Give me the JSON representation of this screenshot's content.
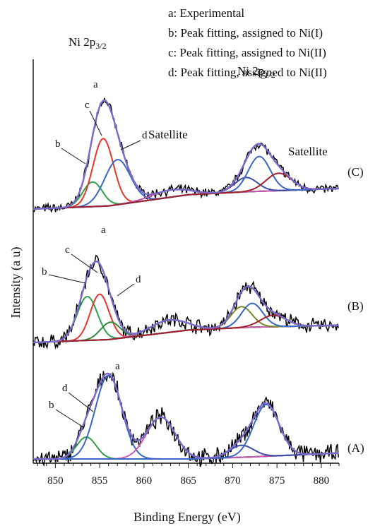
{
  "chart_data": {
    "type": "line",
    "title": "",
    "xlabel": "Binding Energy (eV)",
    "ylabel": "Intensity (a u)",
    "xlim": [
      847.5,
      882
    ],
    "x_ticks": [
      850,
      855,
      860,
      865,
      870,
      875,
      880
    ],
    "x_minor_step": 1,
    "y_ticks_shown": false,
    "grid": false,
    "legend_position": "top-right",
    "legend": [
      "a: Experimental",
      "b: Peak fitting, assigned to Ni(I)",
      "c: Peak fitting, assigned to Ni(II)",
      "d: Peak fitting, assigned to Ni(II)"
    ],
    "colors": {
      "experimental": "#000000",
      "envelope": "#7b68c8",
      "background": "#000000",
      "b": "#2e9e4a",
      "c": "#e8352c",
      "d": "#3a66c4",
      "sat_pink": "#c75bb0",
      "sat_blue": "#3a4aa8",
      "sat_red": "#a01f2a",
      "sat_olive": "#7a8a2a"
    },
    "panels": [
      {
        "label": "(C)",
        "background": {
          "x": [
            847.5,
            856,
            865,
            872,
            882
          ],
          "y": [
            0.0,
            0.03,
            0.14,
            0.17,
            0.2
          ]
        },
        "components": [
          {
            "key": "b",
            "center": 854.2,
            "height": 0.24,
            "fwhm": 2.6,
            "color": "#2e9e4a"
          },
          {
            "key": "c",
            "center": 855.4,
            "height": 0.66,
            "fwhm": 2.7,
            "color": "#e8352c"
          },
          {
            "key": "d",
            "center": 857.0,
            "height": 0.44,
            "fwhm": 3.4,
            "color": "#3a66c4"
          },
          {
            "key": "sat",
            "center": 863.0,
            "height": 0.07,
            "fwhm": 5.0,
            "color": "#c75bb0"
          },
          {
            "key": "sat",
            "center": 871.5,
            "height": 0.14,
            "fwhm": 3.0,
            "color": "#3a4aa8"
          },
          {
            "key": "sat",
            "center": 873.0,
            "height": 0.34,
            "fwhm": 2.9,
            "color": "#3a66c4"
          },
          {
            "key": "sat",
            "center": 875.2,
            "height": 0.17,
            "fwhm": 3.4,
            "color": "#a01f2a"
          }
        ],
        "annotations": {
          "peak_main": "Ni 2p3/2",
          "peak_secondary": "Ni 2p1/2",
          "satellite_1": "Satellite",
          "satellite_2": "Satellite",
          "a": "a",
          "b": "b",
          "c": "c",
          "d": "d"
        }
      },
      {
        "label": "(B)",
        "background": {
          "x": [
            847.5,
            856,
            865,
            872,
            882
          ],
          "y": [
            0.0,
            0.03,
            0.13,
            0.16,
            0.18
          ]
        },
        "components": [
          {
            "key": "b",
            "center": 853.6,
            "height": 0.46,
            "fwhm": 2.7,
            "color": "#2e9e4a"
          },
          {
            "key": "c",
            "center": 855.0,
            "height": 0.48,
            "fwhm": 2.5,
            "color": "#e8352c"
          },
          {
            "key": "d",
            "center": 856.2,
            "height": 0.18,
            "fwhm": 2.6,
            "color": "#2e8a3a"
          },
          {
            "key": "sat",
            "center": 862.8,
            "height": 0.13,
            "fwhm": 4.8,
            "color": "#c75bb0"
          },
          {
            "key": "sat",
            "center": 871.0,
            "height": 0.22,
            "fwhm": 2.8,
            "color": "#7a8a2a"
          },
          {
            "key": "sat",
            "center": 872.2,
            "height": 0.25,
            "fwhm": 2.8,
            "color": "#3a66c4"
          },
          {
            "key": "sat",
            "center": 874.6,
            "height": 0.12,
            "fwhm": 3.4,
            "color": "#a01f2a"
          }
        ],
        "annotations": {
          "a": "a",
          "b": "b",
          "c": "c",
          "d": "d"
        }
      },
      {
        "label": "(A)",
        "background": {
          "x": [
            847.5,
            856,
            865,
            872,
            882
          ],
          "y": [
            0.0,
            0.0,
            0.0,
            0.02,
            0.06
          ]
        },
        "components": [
          {
            "key": "b",
            "center": 853.5,
            "height": 0.22,
            "fwhm": 2.6,
            "color": "#2e9e4a"
          },
          {
            "key": "d",
            "center": 856.0,
            "height": 0.84,
            "fwhm": 3.5,
            "color": "#3a66c4"
          },
          {
            "key": "sat",
            "center": 861.9,
            "height": 0.42,
            "fwhm": 3.8,
            "color": "#c75bb0"
          },
          {
            "key": "sat",
            "center": 871.0,
            "height": 0.12,
            "fwhm": 3.2,
            "color": "#3a4aa8"
          },
          {
            "key": "sat",
            "center": 873.8,
            "height": 0.52,
            "fwhm": 3.4,
            "color": "#3a66c4"
          }
        ],
        "annotations": {
          "a": "a",
          "b": "b",
          "d": "d"
        }
      }
    ]
  }
}
